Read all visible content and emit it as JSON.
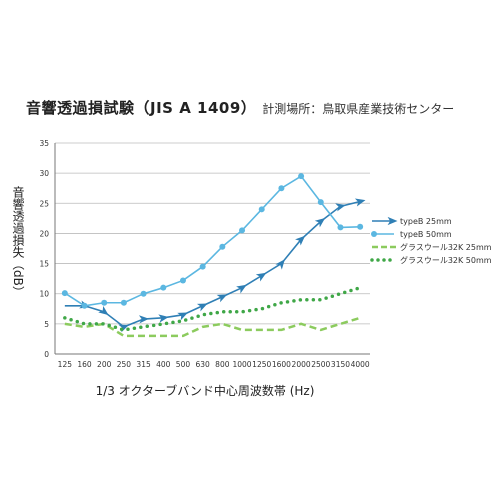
{
  "header": {
    "title": "音響透過損試験（JIS A 1409）",
    "subtitle": "計測場所：鳥取県産業技術センター"
  },
  "chart_data": {
    "type": "line",
    "title": "音響透過損試験（JIS A 1409）",
    "subtitle": "計測場所：鳥取県産業技術センター",
    "ylabel": "音響透過損失（dB）",
    "xlabel": "1/3 オクターブバンド中心周波数帯 (Hz)",
    "categories": [
      "125",
      "160",
      "200",
      "250",
      "315",
      "400",
      "500",
      "630",
      "800",
      "1000",
      "1250",
      "1600",
      "2000",
      "2500",
      "3150",
      "4000"
    ],
    "ylim": [
      0,
      35
    ],
    "yticks": [
      0,
      5,
      10,
      15,
      20,
      25,
      30,
      35
    ],
    "grid": true,
    "legend_position": "right",
    "series": [
      {
        "name": "typeB 25mm",
        "color": "#2f7fb5",
        "marker": "arrow",
        "values": [
          8,
          8,
          7,
          4.5,
          5.8,
          6,
          6.5,
          8,
          9.5,
          11,
          13,
          15,
          19,
          22,
          24.5,
          25.3
        ]
      },
      {
        "name": "typeB 50mm",
        "color": "#5bb7e1",
        "marker": "circle",
        "values": [
          10.1,
          8,
          8.5,
          8.5,
          10,
          11,
          12.2,
          14.5,
          17.8,
          20.5,
          24,
          27.5,
          29.5,
          25.2,
          21,
          21.1
        ]
      },
      {
        "name": "グラスウール32K 25mm",
        "color": "#8ccb5e",
        "marker": "dash",
        "values": [
          5,
          4.5,
          5,
          3,
          3,
          3,
          3,
          4.5,
          5,
          4,
          4,
          4,
          5,
          4,
          5,
          6
        ]
      },
      {
        "name": "グラスウール32K 50mm",
        "color": "#3fa747",
        "marker": "dot",
        "values": [
          6,
          5,
          5,
          4,
          4.5,
          5,
          5.5,
          6.5,
          7,
          7,
          7.5,
          8.5,
          9,
          9,
          10,
          11
        ]
      }
    ]
  }
}
